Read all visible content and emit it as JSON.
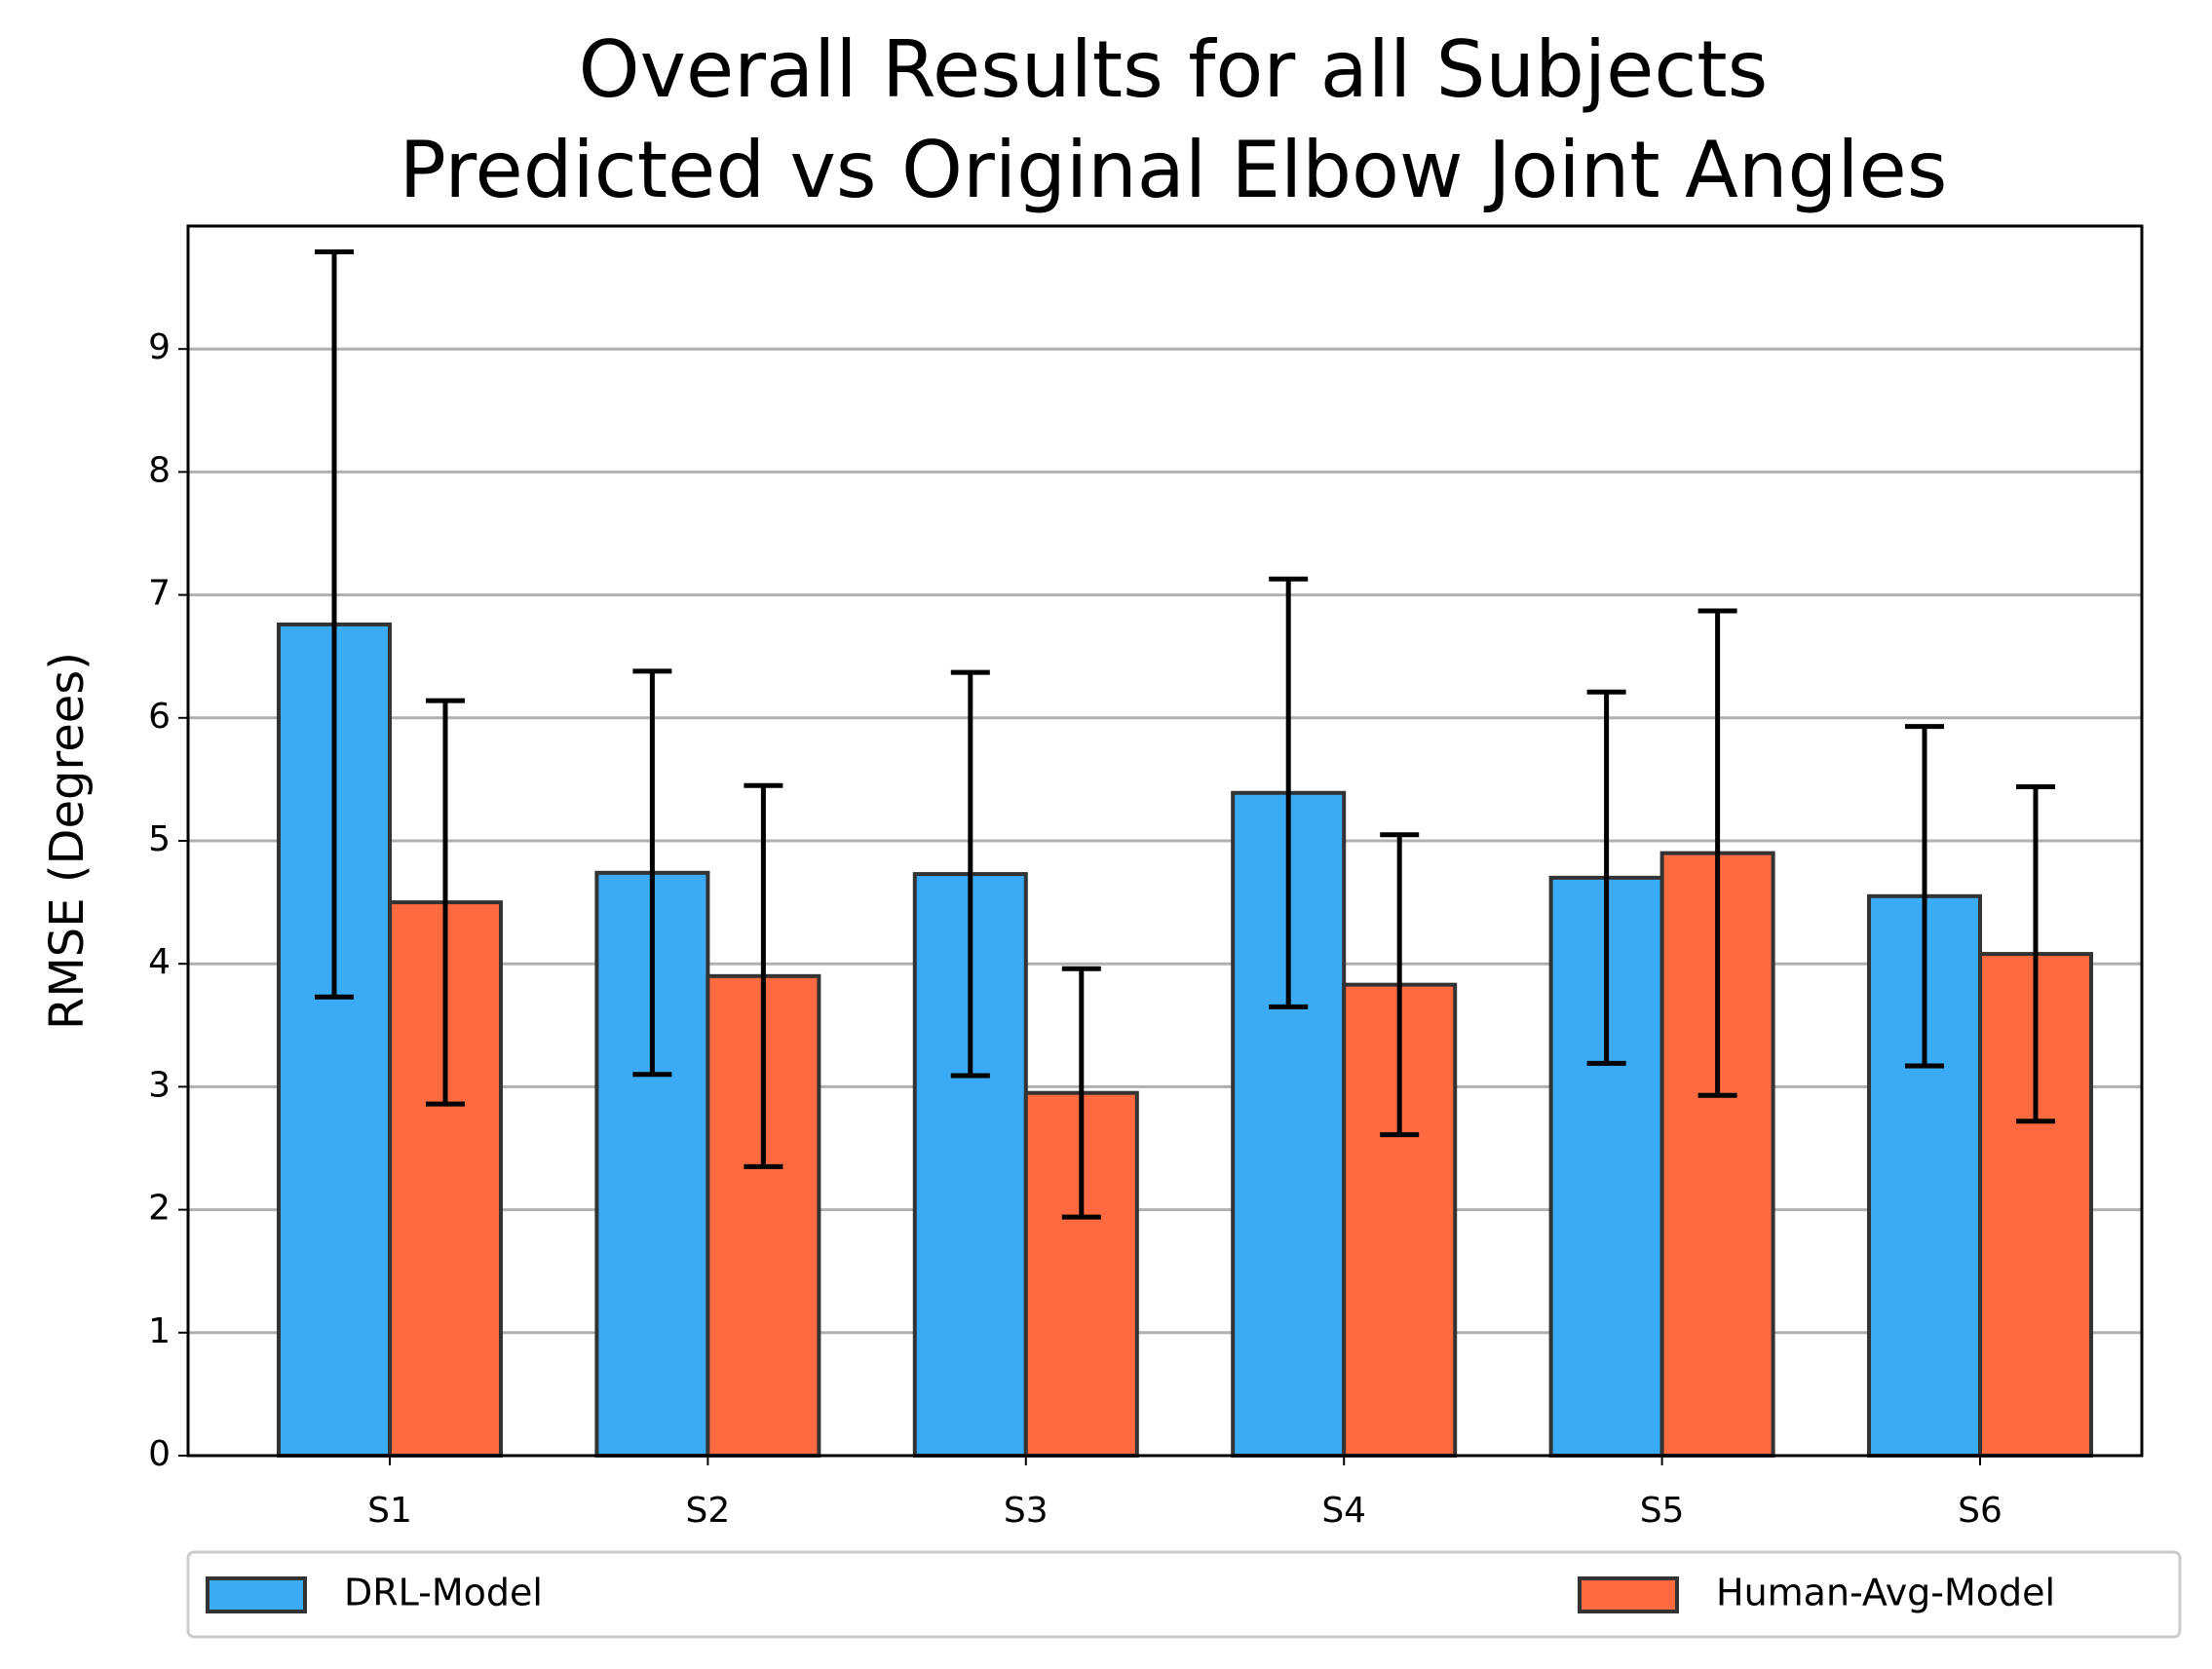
{
  "chart_data": {
    "type": "bar",
    "title": "Overall Results for all Subjects",
    "subtitle": "Predicted vs Original Elbow Joint Angles",
    "y_label": "RMSE (Degrees)",
    "categories": [
      "S1",
      "S2",
      "S3",
      "S4",
      "S5",
      "S6"
    ],
    "series": [
      {
        "name": "DRL-Model",
        "color": "#3aabf4",
        "values": [
          6.76,
          4.74,
          4.73,
          5.39,
          4.7,
          4.55
        ],
        "errors": [
          3.03,
          1.64,
          1.64,
          1.74,
          1.51,
          1.38
        ]
      },
      {
        "name": "Human-Avg-Model",
        "color": "#ff6a40",
        "values": [
          4.5,
          3.9,
          2.95,
          3.83,
          4.9,
          4.08
        ],
        "errors": [
          1.64,
          1.55,
          1.01,
          1.22,
          1.97,
          1.36
        ]
      }
    ],
    "ylim": [
      0,
      10
    ],
    "yticks": [
      0,
      1,
      2,
      3,
      4,
      5,
      6,
      7,
      8,
      9
    ],
    "grid": true,
    "legend": "below"
  }
}
